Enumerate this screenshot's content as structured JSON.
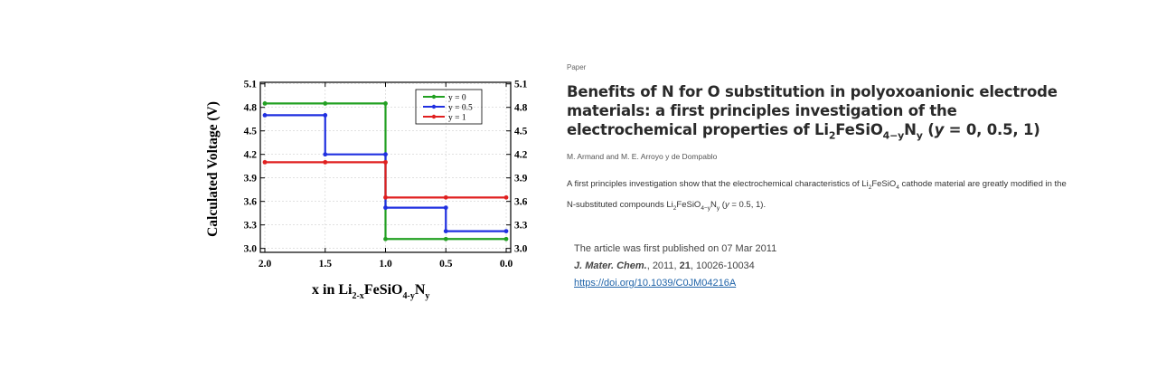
{
  "chart_data": {
    "type": "line",
    "xlabel_parts": {
      "prefix": "x in Li",
      "sub1": "2-x",
      "mid": "FeSiO",
      "sub2": "4-y",
      "end": "N",
      "sub3": "y"
    },
    "ylabel": "Calculated Voltage (V)",
    "xlim": [
      2.0,
      0.0
    ],
    "ylim": [
      2.95,
      5.12
    ],
    "x_ticks": [
      "2.0",
      "1.5",
      "1.0",
      "0.5",
      "0.0"
    ],
    "y_ticks": [
      "3.0",
      "3.3",
      "3.6",
      "3.9",
      "4.2",
      "4.5",
      "4.8",
      "5.1"
    ],
    "legend": "top-right",
    "grid": true,
    "series": [
      {
        "name": "y = 0",
        "color": "#22a022",
        "x": [
          2.0,
          1.5,
          1.0,
          1.0,
          0.5,
          0.0
        ],
        "y": [
          4.85,
          4.85,
          4.85,
          3.12,
          3.12,
          3.12
        ]
      },
      {
        "name": "y = 0.5",
        "color": "#2030e0",
        "x": [
          2.0,
          1.5,
          1.5,
          1.0,
          1.0,
          0.5,
          0.5,
          0.0
        ],
        "y": [
          4.7,
          4.7,
          4.2,
          4.2,
          3.52,
          3.52,
          3.22,
          3.22
        ]
      },
      {
        "name": "y = 1",
        "color": "#e02020",
        "x": [
          2.0,
          1.5,
          1.0,
          1.0,
          0.5,
          0.0
        ],
        "y": [
          4.1,
          4.1,
          4.1,
          3.65,
          3.65,
          3.65
        ]
      }
    ]
  },
  "article": {
    "type_label": "Paper",
    "title_part1": "Benefits of N for O substitution in polyoxoanionic electrode materials: a first principles investigation of the electrochemical properties of Li",
    "title_sub1": "2",
    "title_mid": "FeSiO",
    "title_sub2": "4−y",
    "title_n": "N",
    "title_sub3": "y",
    "title_open": " (",
    "title_y": "y",
    "title_end": " = 0, 0.5, 1)",
    "authors": "M. Armand and M. E. Arroyo y de Dompablo",
    "abstract_part1": "A first principles investigation show that the electrochemical characteristics of Li",
    "abstract_sub1": "2",
    "abstract_mid": "FeSiO",
    "abstract_sub2": "4",
    "abstract_part2": " cathode material are greatly modified in the N-substituted compounds Li",
    "abstract_sub3": "2",
    "abstract_mid2": "FeSiO",
    "abstract_sub4": "4−y",
    "abstract_n": "N",
    "abstract_sub5": "y",
    "abstract_paren_open": " (",
    "abstract_y": "y",
    "abstract_end": " = 0.5, 1).",
    "published": "The article was first published on 07 Mar 2011",
    "journal": "J. Mater. Chem.",
    "year_text": ", 2011, ",
    "volume": "21",
    "pages": ", 10026-10034",
    "doi": "https://doi.org/10.1039/C0JM04216A"
  }
}
